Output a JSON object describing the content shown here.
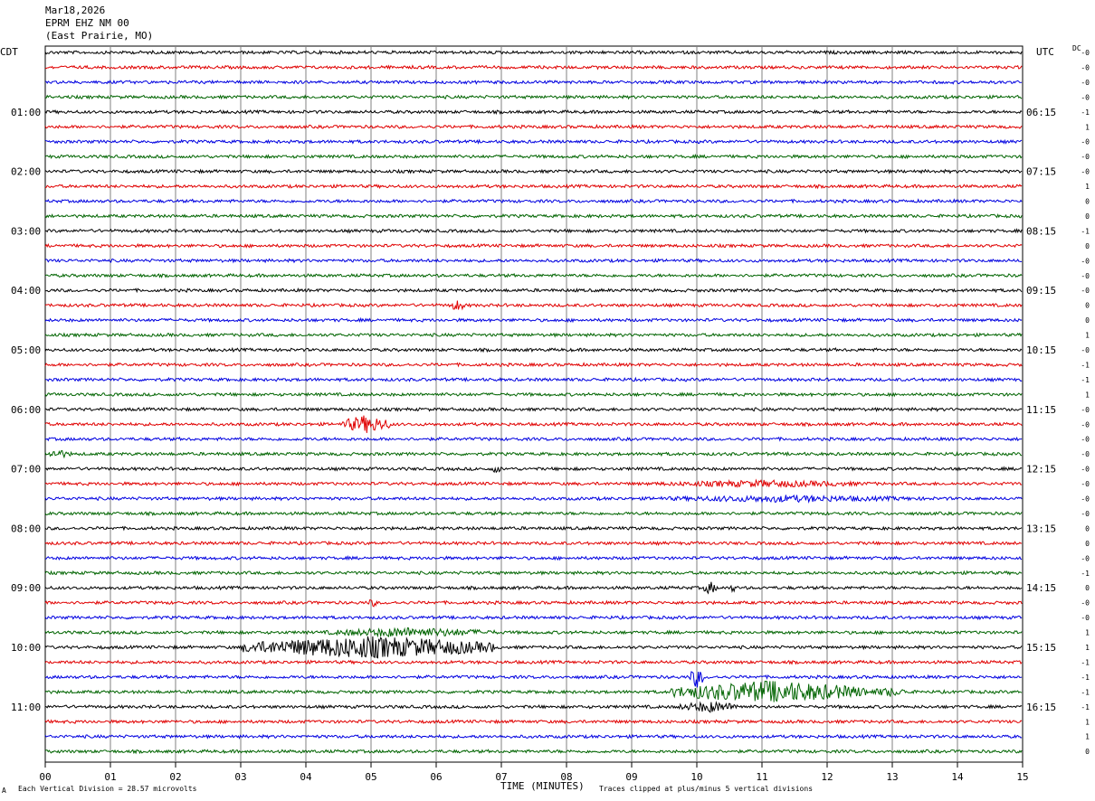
{
  "header": {
    "date": "Mar18,2026",
    "station": "EPRM EHZ NM 00",
    "location": "(East Prairie, MO)"
  },
  "left_axis_title": "CDT",
  "right_axis_title": "UTC",
  "dc_title": "DC",
  "footer": {
    "scale_text": "Each Vertical Division =   28.57 microvolts",
    "x_title": "TIME (MINUTES)",
    "clip_text": "Traces clipped at plus/minus 5 vertical divisions",
    "corner_mark": "A"
  },
  "colors": {
    "trace_cycle": [
      "#000000",
      "#e00000",
      "#0000e0",
      "#006400"
    ],
    "grid": "#808080"
  },
  "chart_data": {
    "type": "line",
    "title": "EPRM EHZ NM 00",
    "xlabel": "TIME (MINUTES)",
    "xlim": [
      0,
      15
    ],
    "x_ticks": [
      "00",
      "01",
      "02",
      "03",
      "04",
      "05",
      "06",
      "07",
      "08",
      "09",
      "10",
      "11",
      "12",
      "13",
      "14",
      "15"
    ],
    "row_count": 48,
    "minutes_per_row": 15,
    "left_hour_labels": [
      {
        "row": 4,
        "label": "01:00"
      },
      {
        "row": 8,
        "label": "02:00"
      },
      {
        "row": 12,
        "label": "03:00"
      },
      {
        "row": 16,
        "label": "04:00"
      },
      {
        "row": 20,
        "label": "05:00"
      },
      {
        "row": 24,
        "label": "06:00"
      },
      {
        "row": 28,
        "label": "07:00"
      },
      {
        "row": 32,
        "label": "08:00"
      },
      {
        "row": 36,
        "label": "09:00"
      },
      {
        "row": 40,
        "label": "10:00"
      },
      {
        "row": 44,
        "label": "11:00"
      }
    ],
    "right_hour_labels": [
      {
        "row": 4,
        "label": "06:15"
      },
      {
        "row": 8,
        "label": "07:15"
      },
      {
        "row": 12,
        "label": "08:15"
      },
      {
        "row": 16,
        "label": "09:15"
      },
      {
        "row": 20,
        "label": "10:15"
      },
      {
        "row": 24,
        "label": "11:15"
      },
      {
        "row": 28,
        "label": "12:15"
      },
      {
        "row": 32,
        "label": "13:15"
      },
      {
        "row": 36,
        "label": "14:15"
      },
      {
        "row": 40,
        "label": "15:15"
      },
      {
        "row": 44,
        "label": "16:15"
      }
    ],
    "dc_offsets": [
      "-0",
      "-0",
      "-0",
      "-0",
      "-1",
      "1",
      "-0",
      "-0",
      "-0",
      "1",
      "0",
      "0",
      "-1",
      "0",
      "-0",
      "-0",
      "-0",
      "0",
      "0",
      "1",
      "-0",
      "-1",
      "-1",
      "1",
      "-0",
      "-0",
      "-0",
      "-0",
      "-0",
      "-0",
      "-0",
      "-0",
      "0",
      "0",
      "-0",
      "-1",
      "0",
      "-0",
      "-0",
      "1",
      "1",
      "-1",
      "-1",
      "-1",
      "-1",
      "1",
      "1",
      "0"
    ],
    "events": [
      {
        "row": 17,
        "start_min": 6.2,
        "end_min": 6.45,
        "amp": 2.5
      },
      {
        "row": 25,
        "start_min": 4.55,
        "end_min": 5.3,
        "amp": 4.0
      },
      {
        "row": 27,
        "start_min": 0.0,
        "end_min": 0.4,
        "amp": 2.0
      },
      {
        "row": 28,
        "start_min": 6.85,
        "end_min": 7.0,
        "amp": 2.0
      },
      {
        "row": 29,
        "start_min": 9.2,
        "end_min": 12.8,
        "amp": 1.6
      },
      {
        "row": 30,
        "start_min": 9.2,
        "end_min": 13.5,
        "amp": 1.6
      },
      {
        "row": 36,
        "start_min": 10.1,
        "end_min": 10.3,
        "amp": 3.0
      },
      {
        "row": 36,
        "start_min": 10.5,
        "end_min": 10.6,
        "amp": 2.0
      },
      {
        "row": 37,
        "start_min": 4.95,
        "end_min": 5.1,
        "amp": 2.0
      },
      {
        "row": 39,
        "start_min": 4.3,
        "end_min": 6.9,
        "amp": 2.2
      },
      {
        "row": 40,
        "start_min": 3.0,
        "end_min": 6.9,
        "amp": 5.0
      },
      {
        "row": 42,
        "start_min": 9.9,
        "end_min": 10.1,
        "amp": 5.0
      },
      {
        "row": 43,
        "start_min": 9.6,
        "end_min": 12.6,
        "amp": 5.0
      },
      {
        "row": 43,
        "start_min": 12.6,
        "end_min": 13.3,
        "amp": 2.0
      },
      {
        "row": 44,
        "start_min": 9.7,
        "end_min": 10.7,
        "amp": 2.5
      }
    ]
  }
}
